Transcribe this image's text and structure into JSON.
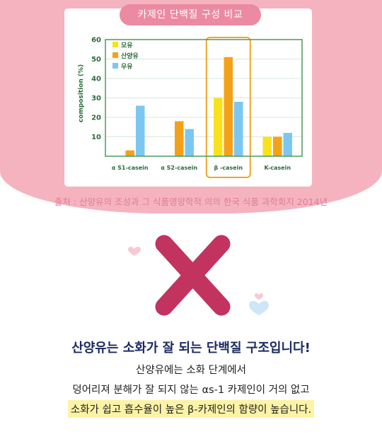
{
  "header_pill": "카제인 단백질 구성 비교",
  "source_note": "출처 : 산양유의 조성과 그 식품영양학적 의의 한국 식품 과학회지 2014년",
  "headline": "산양유는 소화가 잘 되는 단백질 구조입니다!",
  "body_lines": [
    "산양유에는 소화 단계에서",
    "덩어리져 분해가 잘 되지 않는 αs-1 카제인이 거의 없고",
    "소화가 쉽고 흡수율이 높은 β-카제인의 함량이 높습니다."
  ],
  "colors": {
    "panel_pink": "#f5b3c0",
    "pill_pink": "#ec8aa2",
    "x_mark": "#c2335f",
    "headline_navy": "#1c2a63",
    "highlight_yellow": "#fdf3a6",
    "chart_axis_green": "#4a9b5c",
    "series_yellow": "#f9e21c",
    "series_orange": "#f4a11a",
    "series_blue": "#7cc7f2",
    "highlight_box": "#f2a525"
  },
  "icons": [
    "heart-icon",
    "x-mark-icon"
  ],
  "chart_data": {
    "type": "bar",
    "title": "",
    "xlabel": "",
    "ylabel": "composition (%)",
    "ylim": [
      0,
      60
    ],
    "yticks": [
      10,
      20,
      30,
      40,
      50,
      60
    ],
    "categories": [
      "α S1-casein",
      "α S2-casein",
      "β -casein",
      "K-casein"
    ],
    "series": [
      {
        "name": "모유",
        "color": "#f9e21c",
        "values": [
          0,
          0,
          30,
          10
        ]
      },
      {
        "name": "산양유",
        "color": "#f4a11a",
        "values": [
          3,
          18,
          51,
          10
        ]
      },
      {
        "name": "우유",
        "color": "#7cc7f2",
        "values": [
          26,
          14,
          28,
          12
        ]
      }
    ],
    "highlighted_category": "β -casein",
    "legend_position": "top-left",
    "grid": true
  }
}
